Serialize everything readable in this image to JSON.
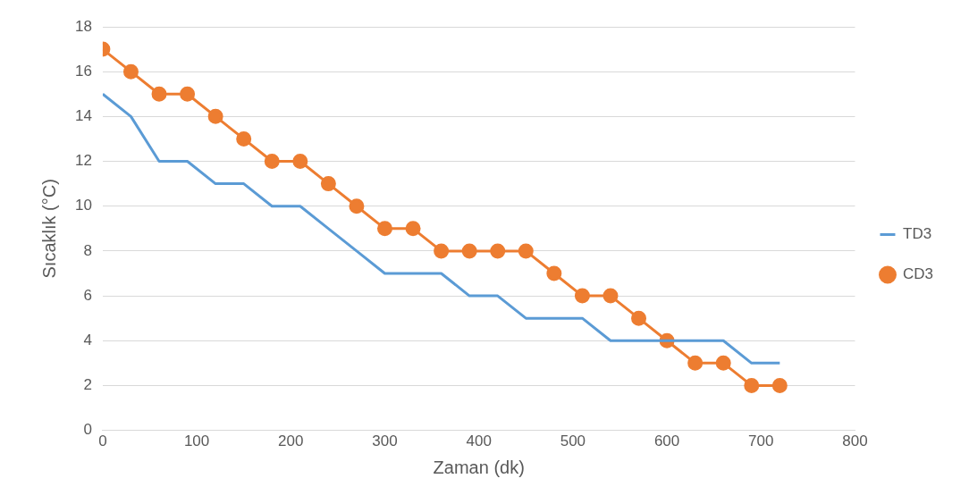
{
  "chart_data": {
    "type": "line",
    "xlabel": "Zaman (dk)",
    "ylabel": "Sıcaklık (°C)",
    "x": [
      0,
      30,
      60,
      90,
      120,
      150,
      180,
      210,
      240,
      270,
      300,
      330,
      360,
      390,
      420,
      450,
      480,
      510,
      540,
      570,
      600,
      630,
      660,
      690,
      720
    ],
    "series": [
      {
        "name": "TD3",
        "color": "#5b9bd5",
        "marker": "none",
        "values": [
          15,
          14,
          12,
          12,
          11,
          11,
          10,
          10,
          9,
          8,
          7,
          7,
          7,
          6,
          6,
          5,
          5,
          5,
          4,
          4,
          4,
          4,
          4,
          3,
          3
        ]
      },
      {
        "name": "CD3",
        "color": "#ed7d31",
        "marker": "circle",
        "values": [
          17,
          16,
          15,
          15,
          14,
          13,
          12,
          12,
          11,
          10,
          9,
          9,
          8,
          8,
          8,
          8,
          7,
          6,
          6,
          5,
          4,
          3,
          3,
          2,
          2
        ]
      }
    ],
    "xlim": [
      0,
      800
    ],
    "xticks": [
      0,
      100,
      200,
      300,
      400,
      500,
      600,
      700,
      800
    ],
    "ylim": [
      0,
      18
    ],
    "yticks": [
      0,
      2,
      4,
      6,
      8,
      10,
      12,
      14,
      16,
      18
    ],
    "grid": "y",
    "legend": "right",
    "line_style": "solid"
  }
}
